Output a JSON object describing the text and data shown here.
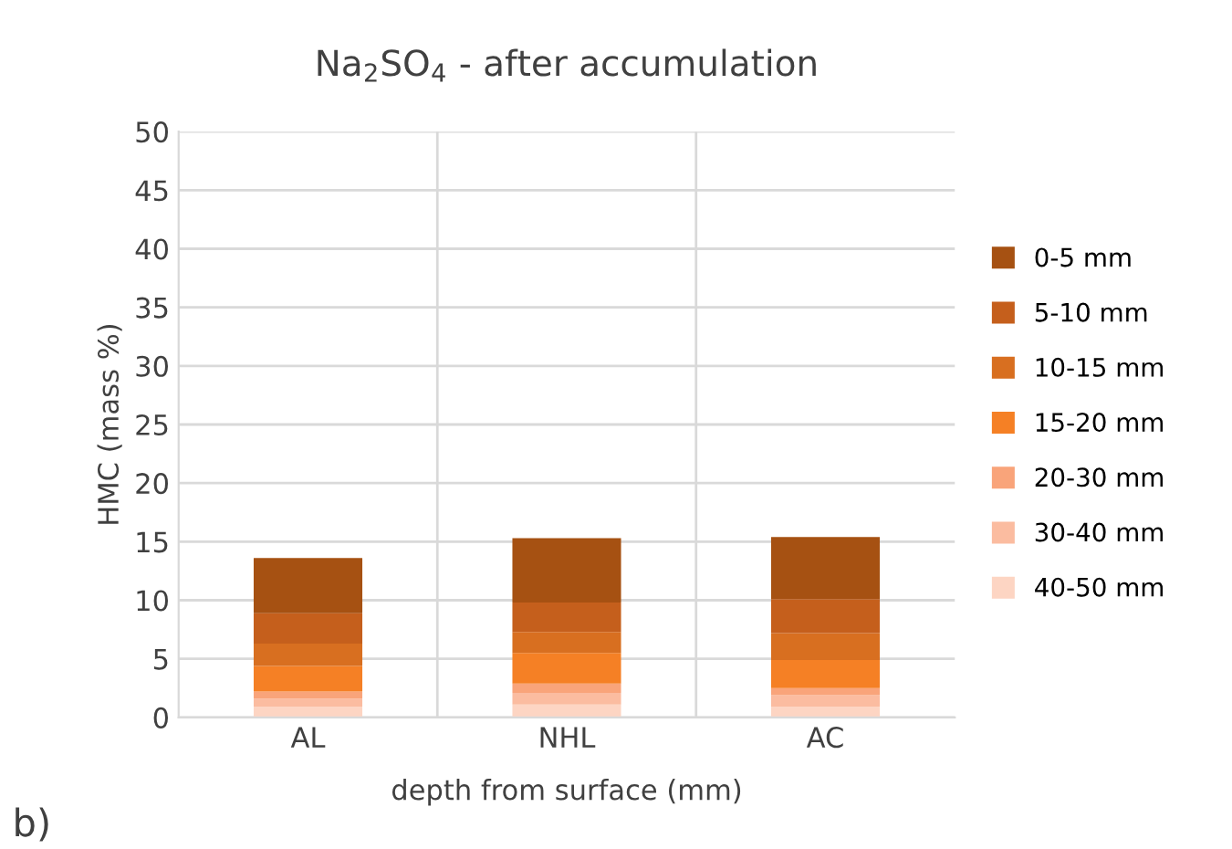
{
  "chart_data": {
    "type": "bar",
    "title": "Na$_{2}$SO$_{4}$ - after accumulation",
    "xlabel": "depth from surface (mm)",
    "ylabel": "HMC (mass %)",
    "categories": [
      "AL",
      "NHL",
      "AC"
    ],
    "stacked": true,
    "series": [
      {
        "name": "40-50 mm",
        "color": "#fdd5c3",
        "values": [
          0.9,
          1.1,
          0.9
        ]
      },
      {
        "name": "30-40 mm",
        "color": "#fbbca0",
        "values": [
          0.7,
          1.0,
          1.0
        ]
      },
      {
        "name": "20-30 mm",
        "color": "#f9a47a",
        "values": [
          0.6,
          0.8,
          0.6
        ]
      },
      {
        "name": "15-20 mm",
        "color": "#f58025",
        "values": [
          2.2,
          2.6,
          2.4
        ]
      },
      {
        "name": "10-15 mm",
        "color": "#d86f20",
        "values": [
          1.9,
          1.8,
          2.3
        ]
      },
      {
        "name": "5-10 mm",
        "color": "#c55f1c",
        "values": [
          2.6,
          2.5,
          2.9
        ]
      },
      {
        "name": "0-5 mm",
        "color": "#a65112",
        "values": [
          4.7,
          5.5,
          5.3
        ]
      }
    ],
    "ylim": [
      0,
      50
    ],
    "yticks": [
      0,
      5,
      10,
      15,
      20,
      25,
      30,
      35,
      40,
      45,
      50
    ],
    "grid": true,
    "legend": "right",
    "annotations": [
      "b)"
    ]
  }
}
